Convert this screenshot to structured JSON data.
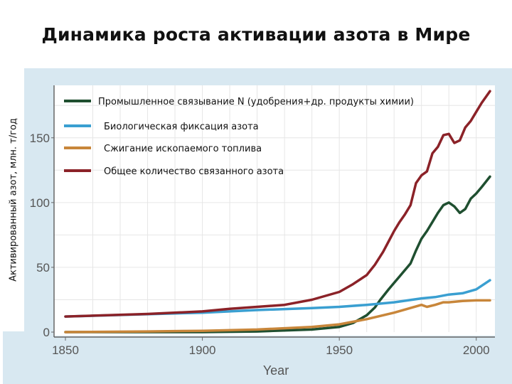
{
  "chart_data": {
    "type": "line",
    "title": "Динамика роста активации азота в Мире",
    "ylabel": "Активированный азот, млн. т/год",
    "xlabel": "Year",
    "xlim": [
      1850,
      2005
    ],
    "ylim": [
      0,
      185
    ],
    "x_ticks": [
      1850,
      1900,
      1950,
      2000
    ],
    "y_ticks": [
      0,
      50,
      100,
      150
    ],
    "grid": true,
    "legend_position": "top-left",
    "series": [
      {
        "name": "Промышленное связывание N  (удобрения+др. продукты химии)",
        "color": "#1f4f30",
        "points": [
          [
            1850,
            0
          ],
          [
            1900,
            0
          ],
          [
            1920,
            0.5
          ],
          [
            1940,
            2
          ],
          [
            1950,
            4
          ],
          [
            1955,
            7
          ],
          [
            1960,
            13
          ],
          [
            1963,
            19
          ],
          [
            1965,
            25
          ],
          [
            1968,
            33
          ],
          [
            1970,
            38
          ],
          [
            1972,
            43
          ],
          [
            1974,
            48
          ],
          [
            1976,
            53
          ],
          [
            1978,
            63
          ],
          [
            1980,
            72
          ],
          [
            1982,
            78
          ],
          [
            1984,
            85
          ],
          [
            1986,
            92
          ],
          [
            1988,
            98
          ],
          [
            1990,
            100
          ],
          [
            1992,
            97
          ],
          [
            1994,
            92
          ],
          [
            1996,
            95
          ],
          [
            1998,
            103
          ],
          [
            2000,
            107
          ],
          [
            2002,
            112
          ],
          [
            2005,
            120
          ]
        ]
      },
      {
        "name": "Биологическая фиксация азота",
        "color": "#3a9fd1",
        "points": [
          [
            1850,
            12
          ],
          [
            1900,
            15
          ],
          [
            1920,
            17
          ],
          [
            1940,
            18.5
          ],
          [
            1950,
            19.5
          ],
          [
            1960,
            21
          ],
          [
            1970,
            23
          ],
          [
            1980,
            26
          ],
          [
            1985,
            27
          ],
          [
            1990,
            29
          ],
          [
            1995,
            30
          ],
          [
            2000,
            33
          ],
          [
            2005,
            40
          ]
        ]
      },
      {
        "name": "Сжигание ископаемого топлива",
        "color": "#c8863a",
        "points": [
          [
            1850,
            0
          ],
          [
            1880,
            0.5
          ],
          [
            1900,
            1
          ],
          [
            1920,
            2
          ],
          [
            1940,
            4
          ],
          [
            1950,
            6
          ],
          [
            1960,
            10
          ],
          [
            1970,
            15
          ],
          [
            1975,
            18
          ],
          [
            1980,
            21
          ],
          [
            1982,
            19.5
          ],
          [
            1985,
            21
          ],
          [
            1988,
            23
          ],
          [
            1990,
            23
          ],
          [
            1995,
            24
          ],
          [
            2000,
            24.5
          ],
          [
            2005,
            24.5
          ]
        ]
      },
      {
        "name": "Общее количество связанного азота",
        "color": "#8b2228",
        "points": [
          [
            1850,
            12
          ],
          [
            1880,
            14
          ],
          [
            1900,
            16
          ],
          [
            1910,
            18
          ],
          [
            1920,
            19.5
          ],
          [
            1930,
            21
          ],
          [
            1940,
            25
          ],
          [
            1950,
            31
          ],
          [
            1955,
            37
          ],
          [
            1960,
            44
          ],
          [
            1963,
            52
          ],
          [
            1966,
            62
          ],
          [
            1968,
            70
          ],
          [
            1970,
            78
          ],
          [
            1972,
            85
          ],
          [
            1974,
            91
          ],
          [
            1976,
            98
          ],
          [
            1978,
            115
          ],
          [
            1980,
            121
          ],
          [
            1982,
            124
          ],
          [
            1984,
            138
          ],
          [
            1986,
            143
          ],
          [
            1988,
            152
          ],
          [
            1990,
            153
          ],
          [
            1992,
            146
          ],
          [
            1994,
            148
          ],
          [
            1996,
            158
          ],
          [
            1998,
            163
          ],
          [
            2000,
            170
          ],
          [
            2002,
            177
          ],
          [
            2005,
            186
          ]
        ]
      }
    ]
  }
}
